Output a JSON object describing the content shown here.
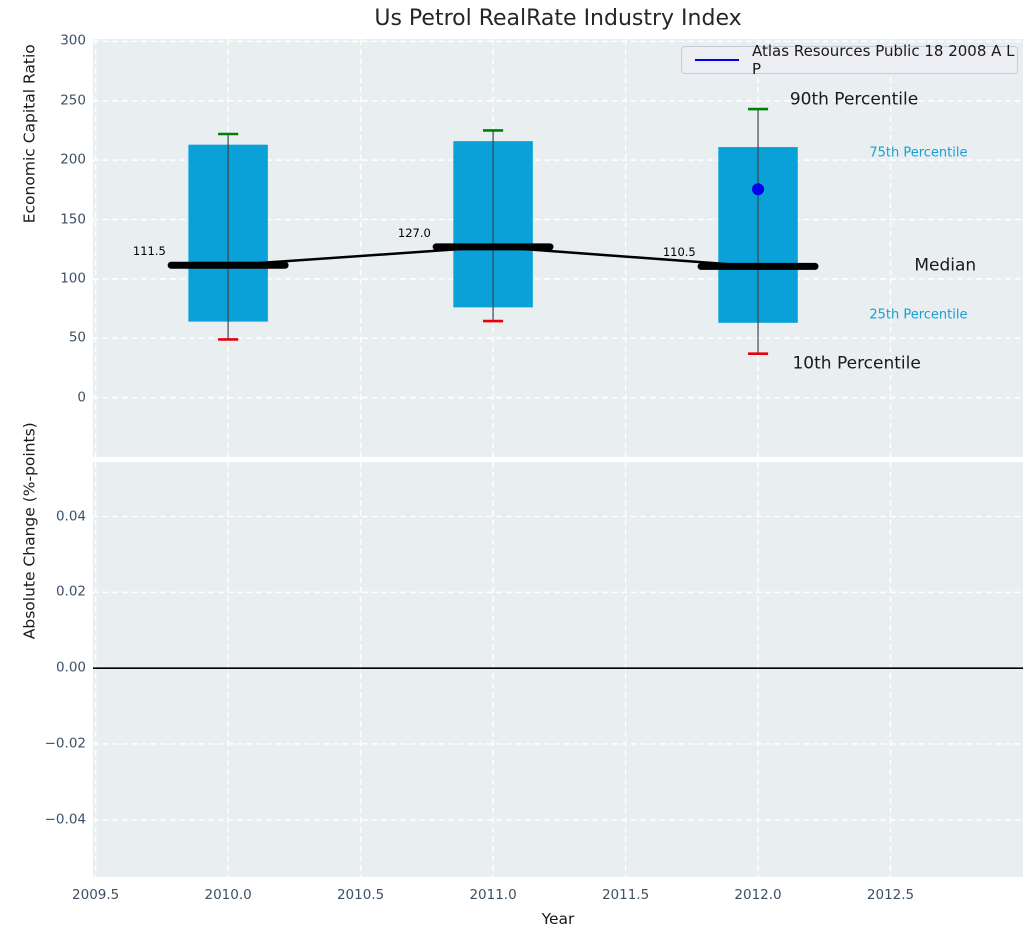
{
  "title": "Us Petrol RealRate Industry Index",
  "legend": {
    "label": "Atlas Resources Public 18 2008 A L P",
    "line_color": "#0000ee"
  },
  "x_axis": {
    "label": "Year",
    "tick_labels": [
      "2009.5",
      "2010.0",
      "2010.5",
      "2011.0",
      "2011.5",
      "2012.0",
      "2012.5"
    ],
    "tick_values": [
      2009.5,
      2010.0,
      2010.5,
      2011.0,
      2011.5,
      2012.0,
      2012.5
    ],
    "xlim": [
      2009.49,
      2013.0
    ]
  },
  "colors": {
    "plot_bg": "#e9eef0",
    "grid": "#ffffff",
    "box_fill": "#0aa1d8",
    "whisker": "#3a4750",
    "cap_90th": "#008000",
    "cap_10th": "#e8000b",
    "median_line": "#000000",
    "dot": "#0000ee",
    "zero_line": "#000000",
    "tick_label": "#3d5166",
    "cyan_label": "#17a0d4",
    "black_label": "#1a1a1a"
  },
  "chart_data": [
    {
      "type": "boxplot",
      "title": "Us Petrol RealRate Industry Index",
      "ylabel": "Economic Capital Ratio",
      "ylim": [
        -50,
        302
      ],
      "ytick_labels": [
        "300",
        "250",
        "200",
        "150",
        "100",
        "50",
        "0"
      ],
      "ytick_values": [
        300,
        250,
        200,
        150,
        100,
        50,
        0
      ],
      "grid": "white-dashed",
      "legend_entry": "Atlas Resources Public 18 2008 A L P",
      "x": [
        2010,
        2011,
        2012
      ],
      "p90": [
        222,
        225,
        243
      ],
      "p75": [
        213,
        216,
        211
      ],
      "median": [
        111.5,
        127.0,
        110.5
      ],
      "p25": [
        64,
        76,
        63
      ],
      "p10": [
        49,
        64.5,
        37
      ],
      "median_labels": [
        "111.5",
        "127.0",
        "110.5"
      ],
      "highlight_dot": {
        "x": 2012,
        "y": 175.5
      },
      "annotations": [
        {
          "text": "90th Percentile",
          "x": 2012.12,
          "y": 250.5,
          "color": "#1a1a1a",
          "size": 17
        },
        {
          "text": "75th Percentile",
          "x": 2012.42,
          "y": 206,
          "color": "#17a0d4",
          "size": 13
        },
        {
          "text": "Median",
          "x": 2012.59,
          "y": 110.5,
          "color": "#1a1a1a",
          "size": 17
        },
        {
          "text": "25th Percentile",
          "x": 2012.42,
          "y": 69.5,
          "color": "#17a0d4",
          "size": 13
        },
        {
          "text": "10th Percentile",
          "x": 2012.13,
          "y": 28,
          "color": "#1a1a1a",
          "size": 17
        }
      ]
    },
    {
      "type": "line",
      "ylabel": "Absolute Change (%-points)",
      "ylim": [
        -0.0551,
        0.0544
      ],
      "ytick_labels": [
        "0.04",
        "0.02",
        "0.00",
        "−0.02",
        "−0.04"
      ],
      "ytick_values": [
        0.04,
        0.02,
        0.0,
        -0.02,
        -0.04
      ],
      "grid": "white-dashed",
      "zero_line_y": 0.0,
      "series": []
    }
  ]
}
